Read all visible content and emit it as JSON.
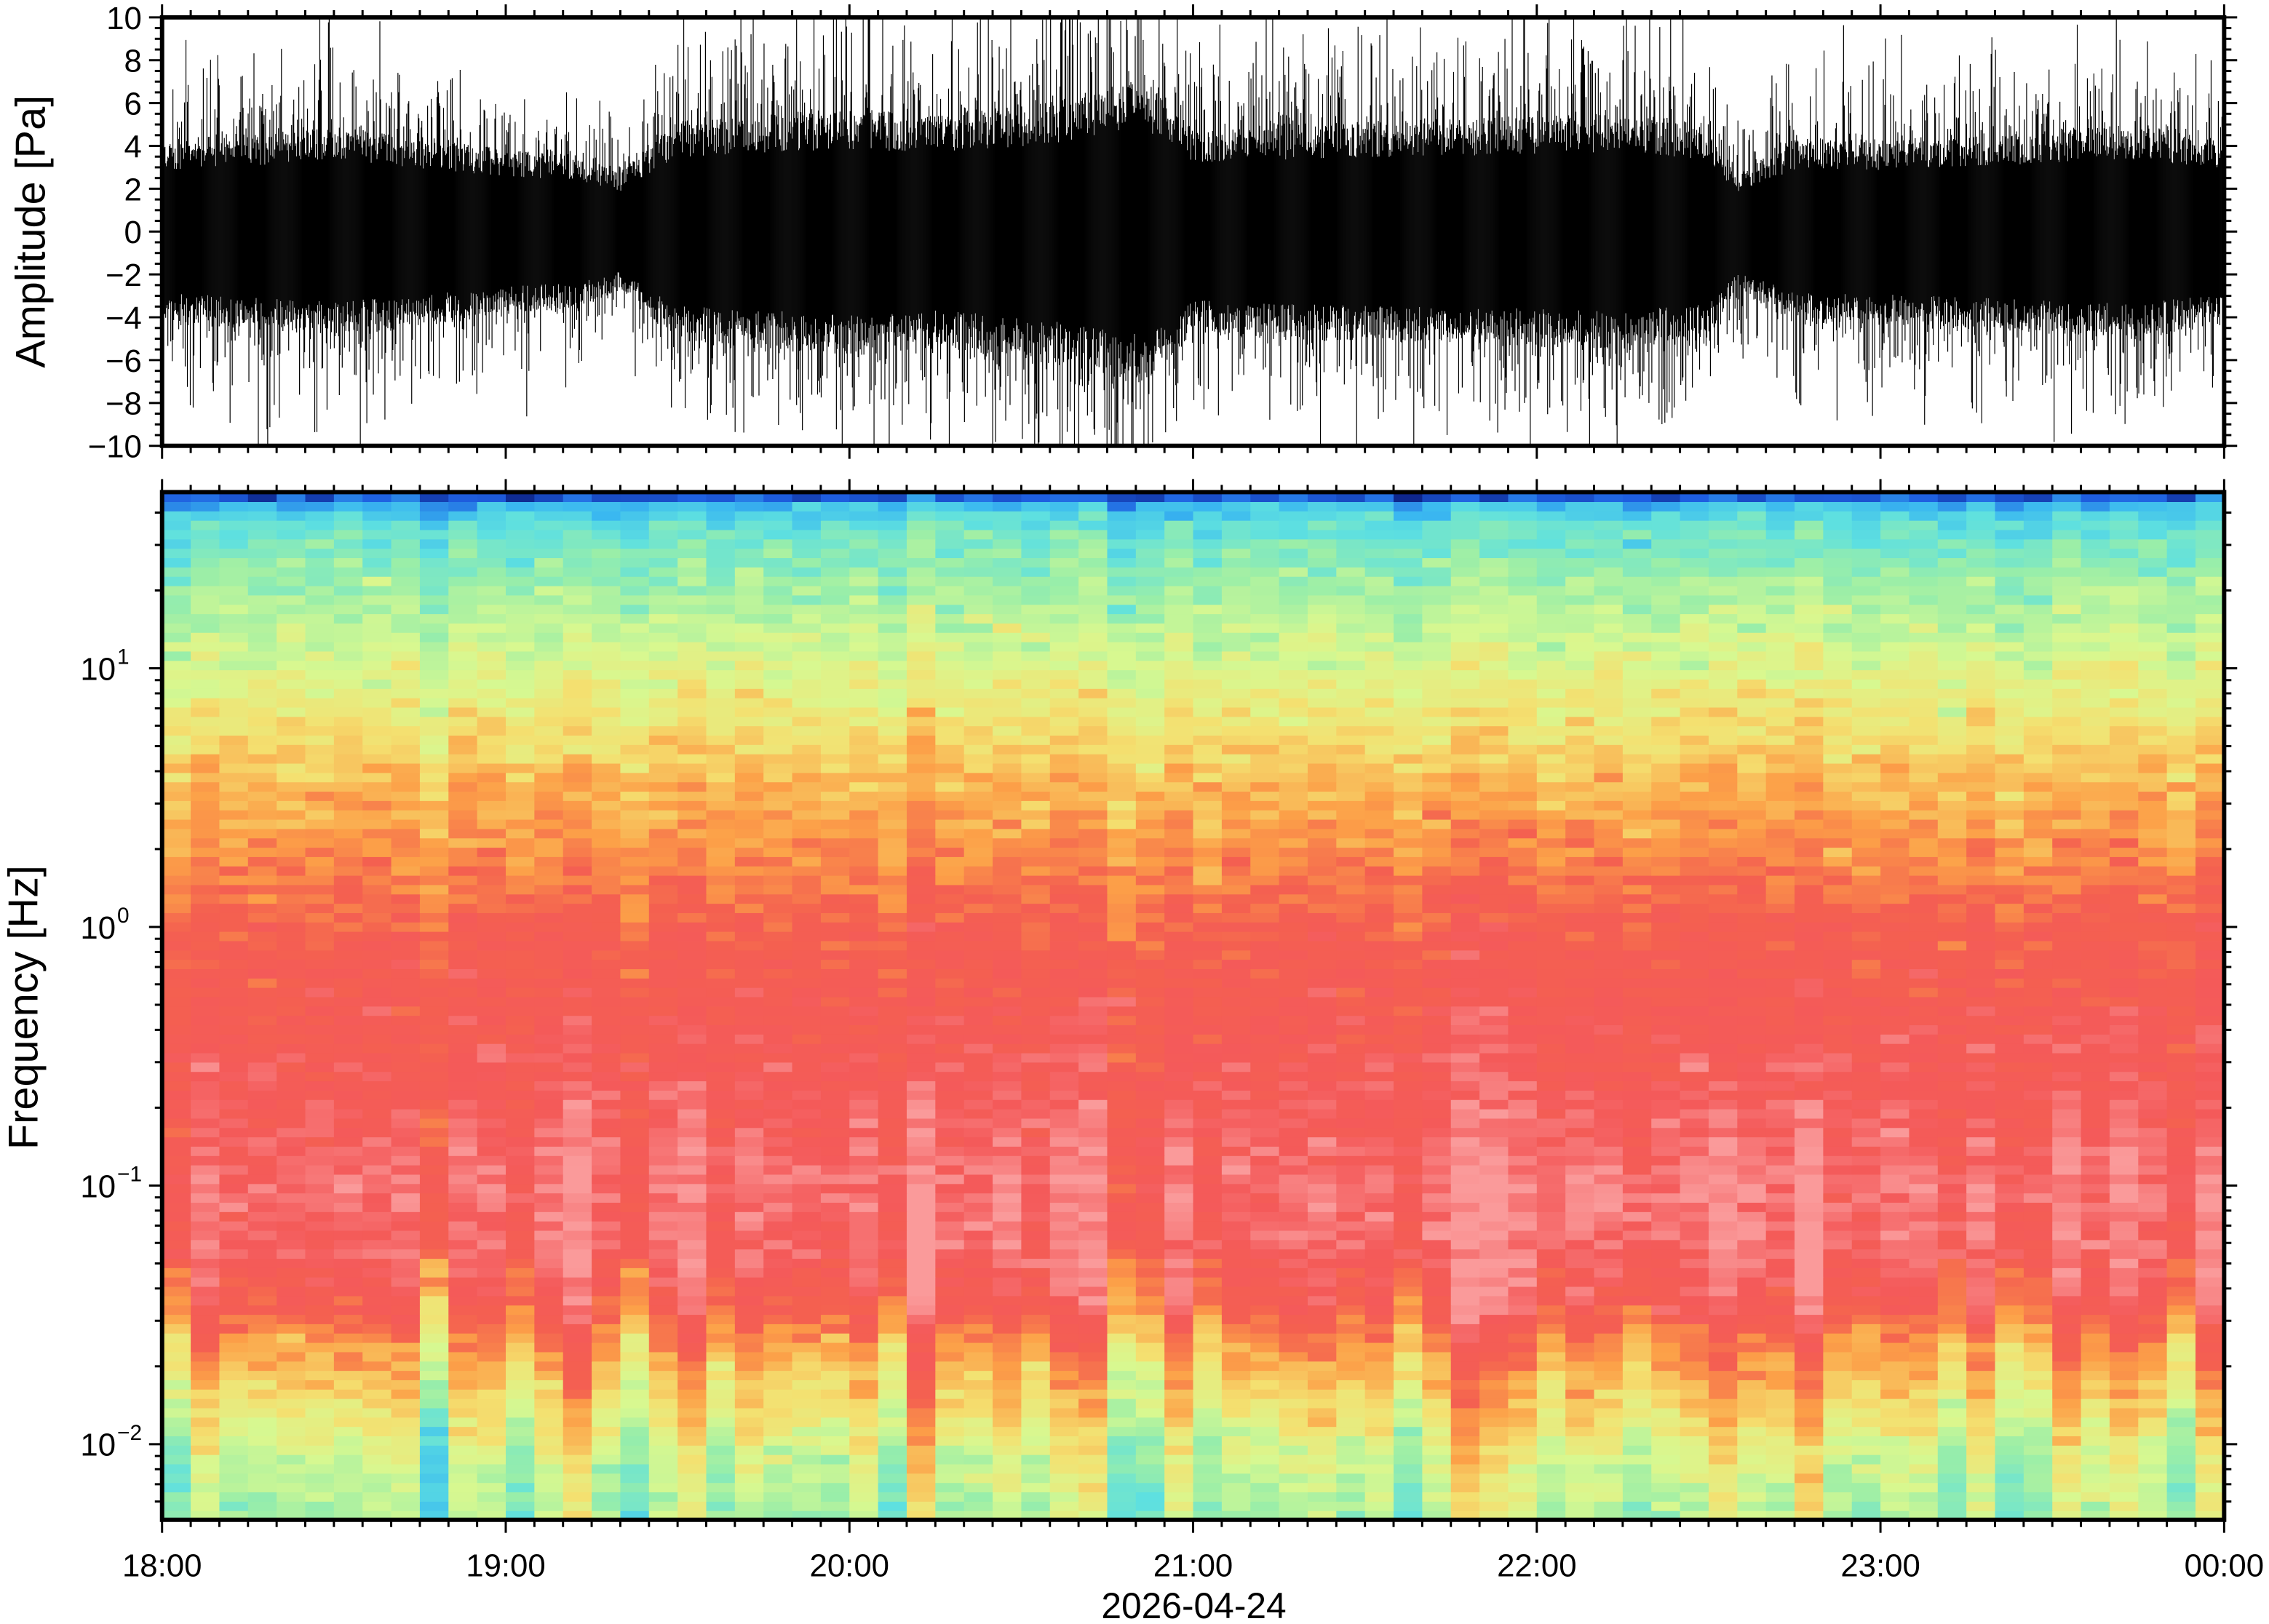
{
  "chart_data": [
    {
      "type": "line",
      "ylabel": "Amplitude [Pa]",
      "ylim": [
        -10,
        10
      ],
      "yticks": [
        "10",
        "8",
        "6",
        "4",
        "2",
        "0",
        "−2",
        "−4",
        "−6",
        "−8",
        "−10"
      ],
      "ytick_values": [
        10,
        8,
        6,
        4,
        2,
        0,
        -2,
        -4,
        -6,
        -8,
        -10
      ],
      "xlim": [
        "2026-04-24 18:00",
        "2026-04-25 00:00"
      ],
      "envelope": {
        "description_units": "Pa",
        "time_hours": [
          18.0,
          18.25,
          18.5,
          18.75,
          19.0,
          19.2,
          19.33,
          19.5,
          19.75,
          20.0,
          20.25,
          20.5,
          20.75,
          20.85,
          21.0,
          21.25,
          21.5,
          21.75,
          22.0,
          22.25,
          22.5,
          22.58,
          22.75,
          23.0,
          23.25,
          23.5,
          23.75,
          24.0
        ],
        "core_amplitude": [
          3.6,
          3.8,
          4.1,
          3.7,
          3.2,
          3.0,
          2.3,
          4.3,
          4.6,
          4.8,
          4.6,
          4.9,
          5.6,
          6.0,
          4.0,
          4.2,
          4.3,
          4.4,
          4.5,
          4.6,
          4.2,
          2.2,
          3.6,
          3.6,
          3.8,
          4.0,
          4.2,
          3.6
        ]
      }
    },
    {
      "type": "heatmap",
      "ylabel": "Frequency [Hz]",
      "xlabel": "2026-04-24",
      "yscale": "log",
      "ylim": [
        0.0051,
        48
      ],
      "yticks": [
        {
          "base": "10",
          "exp": "1",
          "value": 10
        },
        {
          "base": "10",
          "exp": "0",
          "value": 1
        },
        {
          "base": "10",
          "exp": "−1",
          "value": 0.1
        },
        {
          "base": "10",
          "exp": "−2",
          "value": 0.01
        }
      ],
      "xticks": [
        "18:00",
        "19:00",
        "20:00",
        "21:00",
        "22:00",
        "23:00",
        "00:00"
      ],
      "colormap": [
        "#0a1a7a",
        "#1e5ee0",
        "#3ab8f0",
        "#5ee0e0",
        "#9aeea8",
        "#d8f890",
        "#f4e070",
        "#fca048",
        "#f46050",
        "#f45a5a",
        "#fa9a9a"
      ],
      "relative_level_profile": {
        "frequency_hz": [
          48,
          44,
          35,
          20,
          10,
          5,
          2,
          1,
          0.5,
          0.2,
          0.1,
          0.06,
          0.035,
          0.025,
          0.018,
          0.012,
          0.009,
          0.0051
        ],
        "level": [
          0.0,
          0.2,
          0.33,
          0.42,
          0.52,
          0.62,
          0.73,
          0.82,
          0.86,
          0.9,
          0.95,
          0.93,
          0.86,
          0.74,
          0.66,
          0.58,
          0.5,
          0.45
        ]
      }
    }
  ]
}
